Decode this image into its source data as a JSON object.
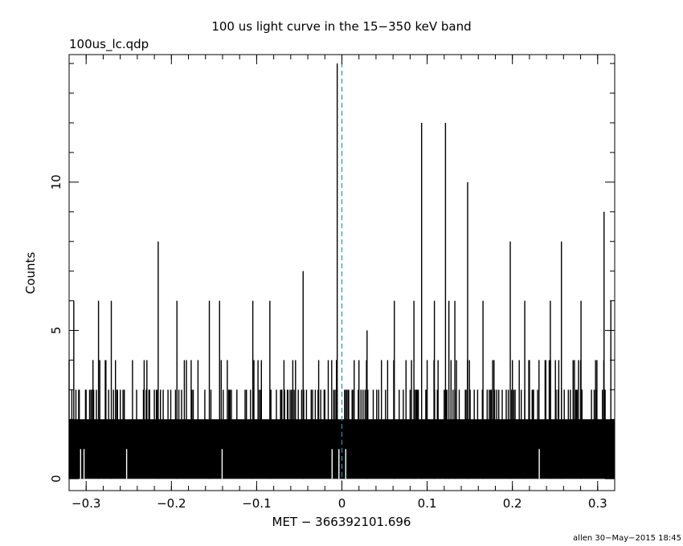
{
  "chart_data": {
    "type": "bar",
    "title": "100 us light curve in the 15−350 keV band",
    "file_label": "100us_lc.qdp",
    "xlabel": "MET − 366392101.696",
    "ylabel": "Counts",
    "footer": "allen 30−May−2015 18:45",
    "xlim": [
      -0.32,
      0.32
    ],
    "ylim": [
      -0.4,
      14.3
    ],
    "x_ticks": [
      -0.3,
      -0.2,
      -0.1,
      0,
      0.1,
      0.2,
      0.3
    ],
    "x_tick_labels": [
      "−0.3",
      "−0.2",
      "−0.1",
      "0",
      "0.1",
      "0.2",
      "0.3"
    ],
    "y_ticks": [
      0,
      5,
      10
    ],
    "y_tick_labels": [
      "0",
      "5",
      "10"
    ],
    "trigger_line_x": 0,
    "bin_width": 0.0001,
    "notable_bins": [
      {
        "x": -0.3145,
        "y": 6
      },
      {
        "x": -0.2855,
        "y": 6
      },
      {
        "x": -0.2705,
        "y": 6
      },
      {
        "x": -0.2155,
        "y": 8
      },
      {
        "x": -0.1935,
        "y": 6
      },
      {
        "x": -0.1555,
        "y": 6
      },
      {
        "x": -0.1435,
        "y": 6
      },
      {
        "x": -0.1045,
        "y": 6
      },
      {
        "x": -0.0845,
        "y": 6
      },
      {
        "x": -0.0455,
        "y": 7
      },
      {
        "x": -0.0055,
        "y": 14
      },
      {
        "x": 0.0295,
        "y": 5
      },
      {
        "x": 0.0615,
        "y": 6
      },
      {
        "x": 0.0845,
        "y": 6
      },
      {
        "x": 0.0935,
        "y": 12
      },
      {
        "x": 0.1085,
        "y": 6
      },
      {
        "x": 0.1215,
        "y": 12
      },
      {
        "x": 0.1255,
        "y": 6
      },
      {
        "x": 0.1325,
        "y": 6
      },
      {
        "x": 0.1475,
        "y": 10
      },
      {
        "x": 0.1655,
        "y": 6
      },
      {
        "x": 0.1975,
        "y": 8
      },
      {
        "x": 0.2145,
        "y": 6
      },
      {
        "x": 0.2445,
        "y": 6
      },
      {
        "x": 0.2575,
        "y": 8
      },
      {
        "x": 0.2805,
        "y": 6
      },
      {
        "x": 0.3075,
        "y": 9
      },
      {
        "x": 0.3155,
        "y": 6
      }
    ],
    "zero_gaps": [
      -0.3065,
      -0.3025,
      -0.2525,
      -0.1405,
      -0.0115,
      -0.0035,
      0.0045,
      0.2315
    ]
  }
}
